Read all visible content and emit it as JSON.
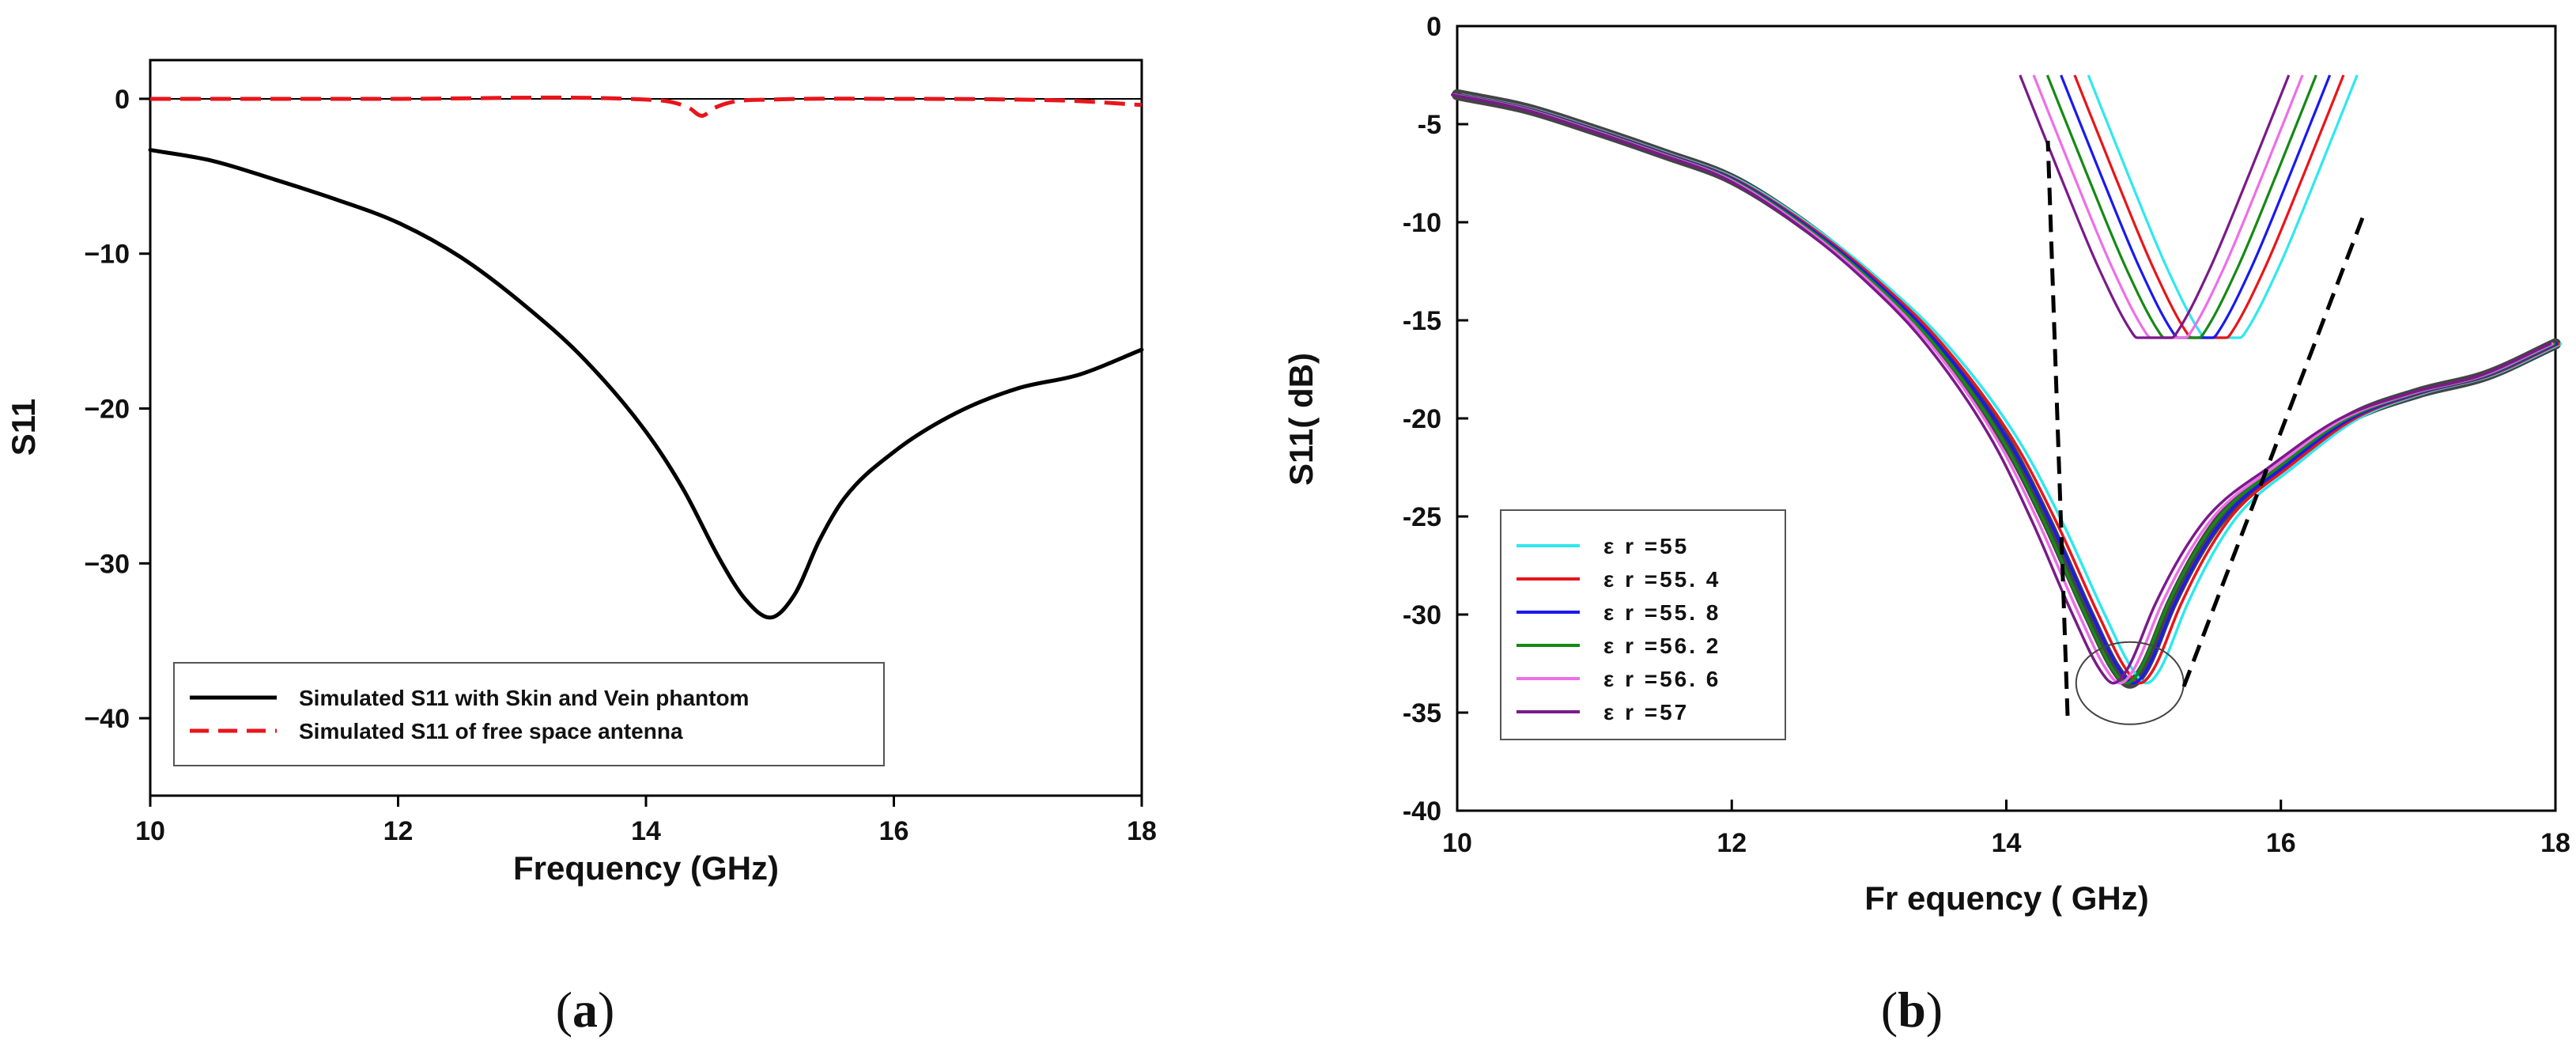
{
  "chart_data": [
    {
      "type": "line",
      "panel": "(a)",
      "xlabel": "Frequency (GHz)",
      "ylabel": "S11",
      "xlim": [
        10,
        18
      ],
      "ylim": [
        -45,
        2.5
      ],
      "x_ticks": [
        10,
        12,
        14,
        16,
        18
      ],
      "y_ticks": [
        0,
        -10,
        -20,
        -30,
        -40
      ],
      "x_tick_labels": [
        "10",
        "12",
        "14",
        "16",
        "18"
      ],
      "y_tick_labels": [
        "0",
        "−10",
        "−20",
        "−30",
        "−40"
      ],
      "grid": false,
      "legend_position": "bottom-right",
      "series": [
        {
          "name": "Simulated S11 with Skin and Vein phantom",
          "color": "#000000",
          "style": "solid",
          "x": [
            10,
            10.5,
            11,
            11.5,
            12,
            12.5,
            13,
            13.5,
            14,
            14.3,
            14.6,
            14.8,
            15,
            15.2,
            15.4,
            15.6,
            16,
            16.5,
            17,
            17.5,
            18
          ],
          "y": [
            -3.3,
            -4.0,
            -5.2,
            -6.5,
            -8.0,
            -10.2,
            -13.2,
            -16.8,
            -21.5,
            -25.2,
            -29.8,
            -32.3,
            -33.5,
            -32.0,
            -28.5,
            -25.8,
            -22.8,
            -20.3,
            -18.7,
            -17.8,
            -16.2
          ]
        },
        {
          "name": "Simulated S11 of free space antenna",
          "color": "#e8151b",
          "style": "dashed",
          "x": [
            10,
            12,
            14,
            14.2,
            14.35,
            14.45,
            14.55,
            14.7,
            15,
            16,
            17,
            17.5,
            18
          ],
          "y": [
            0,
            0,
            -0.05,
            -0.2,
            -0.6,
            -1.1,
            -0.6,
            -0.2,
            -0.05,
            0,
            -0.05,
            -0.15,
            -0.4
          ]
        }
      ]
    },
    {
      "type": "line",
      "panel": "(b)",
      "xlabel": "Fr equency  ( GHz)",
      "ylabel": "S11( dB)",
      "xlim": [
        10,
        18
      ],
      "ylim": [
        -40,
        0
      ],
      "x_ticks": [
        10,
        12,
        14,
        16,
        18
      ],
      "y_ticks": [
        0,
        -5,
        -10,
        -15,
        -20,
        -25,
        -30,
        -35,
        -40
      ],
      "x_tick_labels": [
        "10",
        "12",
        "14",
        "16",
        "18"
      ],
      "y_tick_labels": [
        "0",
        "-5",
        "-10",
        "-15",
        "-20",
        "-25",
        "-30",
        "-35",
        "-40"
      ],
      "grid": false,
      "legend_position": "bottom-left",
      "base_curve": {
        "x": [
          10,
          10.5,
          11,
          11.5,
          12,
          12.5,
          13,
          13.5,
          14,
          14.3,
          14.6,
          14.8,
          14.9,
          15.0,
          15.2,
          15.4,
          15.6,
          16,
          16.5,
          17,
          17.5,
          18
        ],
        "y": [
          -3.5,
          -4.2,
          -5.3,
          -6.5,
          -7.8,
          -10.0,
          -12.8,
          -16.3,
          -21.2,
          -25.3,
          -30.0,
          -32.8,
          -33.5,
          -32.8,
          -29.5,
          -26.8,
          -24.8,
          -22.5,
          -20.0,
          -18.7,
          -17.8,
          -16.2
        ]
      },
      "series": [
        {
          "name": "ε r =55",
          "color": "#2ee8ee",
          "shift_ghz": 0.03
        },
        {
          "name": "ε r =55. 4",
          "color": "#e8151b",
          "shift_ghz": 0.018
        },
        {
          "name": "ε r =55. 8",
          "color": "#1a1aee",
          "shift_ghz": 0.006
        },
        {
          "name": "ε r =56. 2",
          "color": "#158a15",
          "shift_ghz": -0.006
        },
        {
          "name": "ε r =56. 6",
          "color": "#ee6ee8",
          "shift_ghz": -0.018
        },
        {
          "name": "ε r =57",
          "color": "#7a1a8a",
          "shift_ghz": -0.03
        }
      ],
      "annotations": {
        "circle_note": "zoom circle around the minimum near 14.9 GHz, -33.5",
        "inset_minimum": -15.8
      }
    }
  ],
  "panel_labels": {
    "a": "(a)",
    "b": "(b)"
  }
}
